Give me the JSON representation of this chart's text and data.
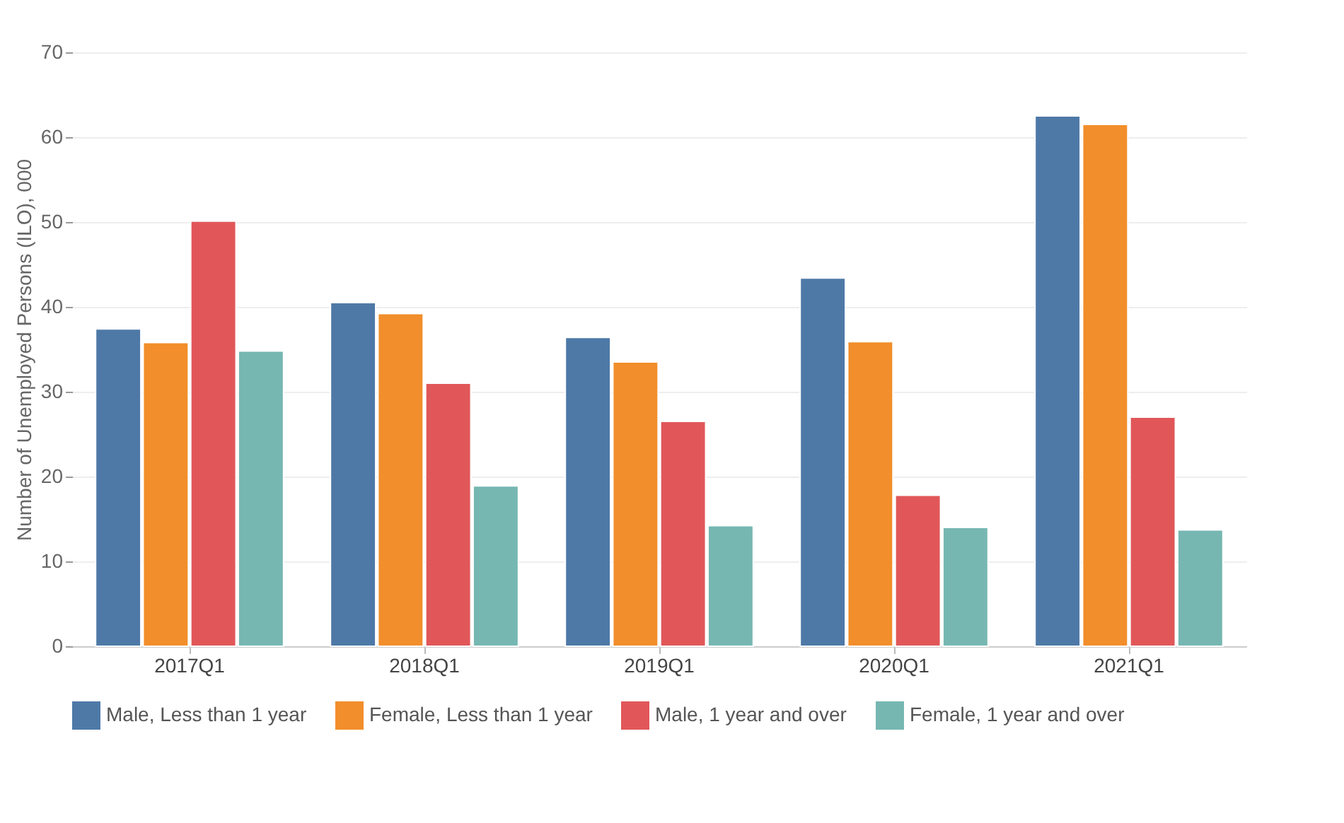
{
  "chart_data": {
    "type": "bar",
    "ylabel": "Number of Unemployed Persons (ILO), 000",
    "categories": [
      "2017Q1",
      "2018Q1",
      "2019Q1",
      "2020Q1",
      "2021Q1"
    ],
    "series": [
      {
        "name": "Male, Less than 1 year",
        "color": "#4e79a7",
        "values": [
          37.4,
          40.5,
          36.4,
          43.4,
          62.5
        ]
      },
      {
        "name": "Female, Less than 1 year",
        "color": "#f28e2b",
        "values": [
          35.8,
          39.2,
          33.5,
          35.9,
          61.5
        ]
      },
      {
        "name": "Male, 1 year and over",
        "color": "#e15759",
        "values": [
          50.1,
          31.0,
          26.5,
          17.8,
          27.0
        ]
      },
      {
        "name": "Female, 1 year and over",
        "color": "#76b7b2",
        "values": [
          34.8,
          18.9,
          14.2,
          14.0,
          13.7
        ]
      }
    ],
    "ylim": [
      0,
      70
    ],
    "yticks": [
      0,
      10,
      20,
      30,
      40,
      50,
      60,
      70
    ],
    "grid": "y",
    "legend": "bottom"
  }
}
